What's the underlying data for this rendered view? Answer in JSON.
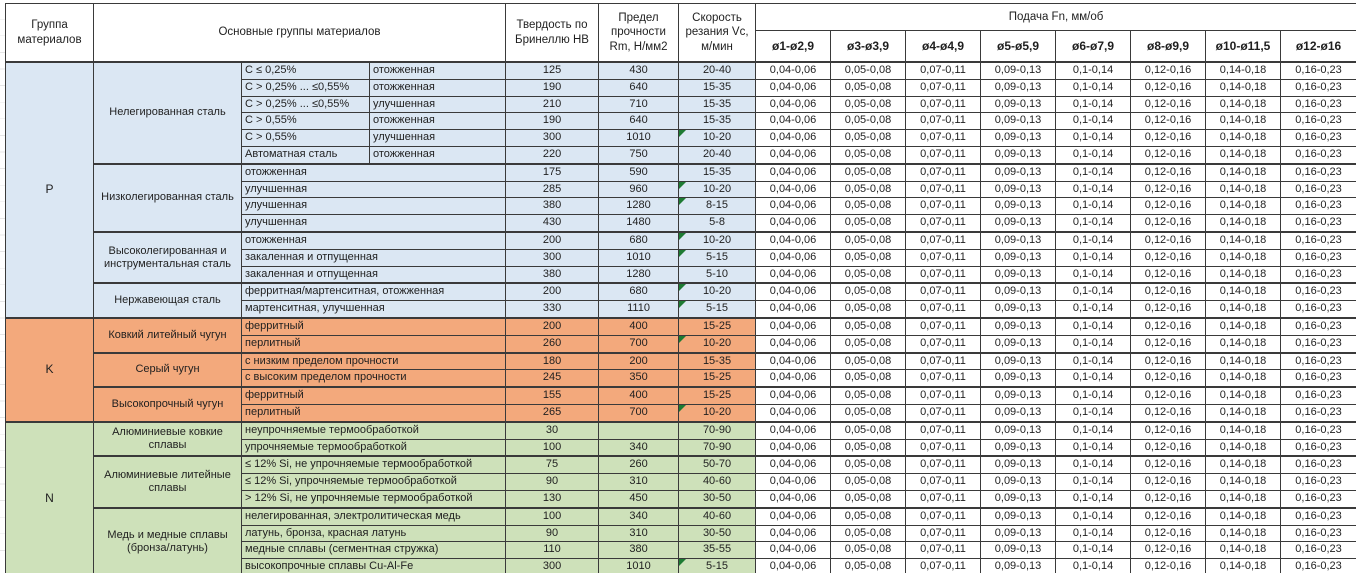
{
  "header": {
    "col_group": "Группа материалов",
    "col_main_groups": "Основные группы материалов",
    "col_hardness": "Твердость по Бринеллю HB",
    "col_strength": "Предел прочности Rm, Н/мм2",
    "col_speed": "Скорость резания Vc, м/мин",
    "feed_title": "Подача Fn, мм/об",
    "feed_cols": [
      "ø1-ø2,9",
      "ø3-ø3,9",
      "ø4-ø4,9",
      "ø5-ø5,9",
      "ø6-ø7,9",
      "ø8-ø9,9",
      "ø10-ø11,5",
      "ø12-ø16"
    ]
  },
  "colors": {
    "group_p": "#DBE7F3",
    "group_k": "#F3A97C",
    "group_n": "#CEE1BA",
    "flag": "#1E7B33",
    "border": "#3A3A3A"
  },
  "feed_values_all_rows": [
    "0,04-0,06",
    "0,05-0,08",
    "0,07-0,11",
    "0,09-0,13",
    "0,1-0,14",
    "0,12-0,16",
    "0,14-0,18",
    "0,16-0,23"
  ],
  "groups": [
    {
      "letter": "P",
      "color": "#DBE7F3",
      "subgroups": [
        {
          "name": "Нелегированная сталь",
          "rows": [
            {
              "detail": [
                "C ≤ 0,25%",
                "отожженная"
              ],
              "hb": "125",
              "rm": "430",
              "vc": "20-40",
              "flag": false
            },
            {
              "detail": [
                "C > 0,25% ... ≤0,55%",
                "отожженная"
              ],
              "hb": "190",
              "rm": "640",
              "vc": "15-35",
              "flag": false
            },
            {
              "detail": [
                "C > 0,25% ... ≤0,55%",
                "улучшенная"
              ],
              "hb": "210",
              "rm": "710",
              "vc": "15-35",
              "flag": false
            },
            {
              "detail": [
                "C > 0,55%",
                "отожженная"
              ],
              "hb": "190",
              "rm": "640",
              "vc": "15-35",
              "flag": false
            },
            {
              "detail": [
                "C > 0,55%",
                "улучшенная"
              ],
              "hb": "300",
              "rm": "1010",
              "vc": "10-20",
              "flag": true
            },
            {
              "detail": [
                "Автоматная сталь",
                "отожженная"
              ],
              "hb": "220",
              "rm": "750",
              "vc": "20-40",
              "flag": false
            }
          ]
        },
        {
          "name": "Низколегированная сталь",
          "rows": [
            {
              "detail": [
                "отожженная"
              ],
              "hb": "175",
              "rm": "590",
              "vc": "15-35",
              "flag": false
            },
            {
              "detail": [
                "улучшенная"
              ],
              "hb": "285",
              "rm": "960",
              "vc": "10-20",
              "flag": true
            },
            {
              "detail": [
                "улучшенная"
              ],
              "hb": "380",
              "rm": "1280",
              "vc": "8-15",
              "flag": true
            },
            {
              "detail": [
                "улучшенная"
              ],
              "hb": "430",
              "rm": "1480",
              "vc": "5-8",
              "flag": false
            }
          ]
        },
        {
          "name": "Высоколегированная и инструментальная сталь",
          "rows": [
            {
              "detail": [
                "отожженная"
              ],
              "hb": "200",
              "rm": "680",
              "vc": "10-20",
              "flag": true
            },
            {
              "detail": [
                "закаленная и отпущенная"
              ],
              "hb": "300",
              "rm": "1010",
              "vc": "5-15",
              "flag": true
            },
            {
              "detail": [
                "закаленная и отпущенная"
              ],
              "hb": "380",
              "rm": "1280",
              "vc": "5-10",
              "flag": false
            }
          ]
        },
        {
          "name": "Нержавеющая сталь",
          "rows": [
            {
              "detail": [
                "ферритная/мартенситная, отожженная"
              ],
              "hb": "200",
              "rm": "680",
              "vc": "10-20",
              "flag": true
            },
            {
              "detail": [
                "мартенситная, улучшенная"
              ],
              "hb": "330",
              "rm": "1110",
              "vc": "5-15",
              "flag": true
            }
          ]
        }
      ]
    },
    {
      "letter": "K",
      "color": "#F3A97C",
      "subgroups": [
        {
          "name": "Ковкий литейный чугун",
          "rows": [
            {
              "detail": [
                "ферритный"
              ],
              "hb": "200",
              "rm": "400",
              "vc": "15-25",
              "flag": false
            },
            {
              "detail": [
                "перлитный"
              ],
              "hb": "260",
              "rm": "700",
              "vc": "10-20",
              "flag": true
            }
          ]
        },
        {
          "name": "Серый чугун",
          "rows": [
            {
              "detail": [
                "с низким пределом прочности"
              ],
              "hb": "180",
              "rm": "200",
              "vc": "15-35",
              "flag": false
            },
            {
              "detail": [
                "с высоким пределом прочности"
              ],
              "hb": "245",
              "rm": "350",
              "vc": "15-25",
              "flag": false
            }
          ]
        },
        {
          "name": "Высокопрочный чугун",
          "rows": [
            {
              "detail": [
                "ферритный"
              ],
              "hb": "155",
              "rm": "400",
              "vc": "15-25",
              "flag": false
            },
            {
              "detail": [
                "перлитный"
              ],
              "hb": "265",
              "rm": "700",
              "vc": "10-20",
              "flag": true
            }
          ]
        }
      ]
    },
    {
      "letter": "N",
      "color": "#CEE1BA",
      "subgroups": [
        {
          "name": "Алюминиевые ковкие сплавы",
          "rows": [
            {
              "detail": [
                "неупрочняемые термообработкой"
              ],
              "hb": "30",
              "rm": "",
              "vc": "70-90",
              "flag": false
            },
            {
              "detail": [
                "упрочняемые термообработкой"
              ],
              "hb": "100",
              "rm": "340",
              "vc": "70-90",
              "flag": false
            }
          ]
        },
        {
          "name": "Алюминиевые литейные сплавы",
          "rows": [
            {
              "detail": [
                "≤ 12% Si, не упрочняемые термообработкой"
              ],
              "hb": "75",
              "rm": "260",
              "vc": "50-70",
              "flag": false
            },
            {
              "detail": [
                "≤ 12% Si, упрочняемые термообработкой"
              ],
              "hb": "90",
              "rm": "310",
              "vc": "40-60",
              "flag": false
            },
            {
              "detail": [
                "> 12% Si, не упрочняемые термообработкой"
              ],
              "hb": "130",
              "rm": "450",
              "vc": "30-50",
              "flag": false
            }
          ]
        },
        {
          "name": "Медь и медные сплавы (бронза/латунь)",
          "rows": [
            {
              "detail": [
                "нелегированная, электролитическая медь"
              ],
              "hb": "100",
              "rm": "340",
              "vc": "40-60",
              "flag": false
            },
            {
              "detail": [
                "латунь, бронза, красная латунь"
              ],
              "hb": "90",
              "rm": "310",
              "vc": "30-50",
              "flag": false
            },
            {
              "detail": [
                "медные сплавы (сегментная стружка)"
              ],
              "hb": "110",
              "rm": "380",
              "vc": "35-55",
              "flag": false
            },
            {
              "detail": [
                "высокопрочные сплавы Cu-Al-Fe"
              ],
              "hb": "300",
              "rm": "1010",
              "vc": "5-15",
              "flag": true
            }
          ]
        }
      ]
    }
  ]
}
